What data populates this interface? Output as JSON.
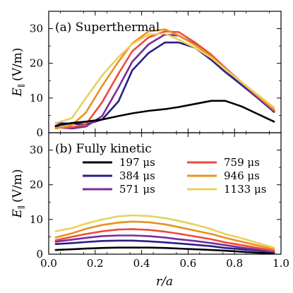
{
  "figure": {
    "xlabel_main": "r/a",
    "ylabel_main": "E",
    "ylabel_sub": "∥",
    "ylabel_unit": "(V/m)"
  },
  "chart_data": [
    {
      "type": "line",
      "panel_label": "(a) Superthermal",
      "xlabel": "r/a",
      "ylabel": "E∥ (V/m)",
      "xlim": [
        0.0,
        1.0
      ],
      "ylim": [
        0,
        35
      ],
      "xticks": [
        "0.0",
        "0.2",
        "0.4",
        "0.6",
        "0.8",
        "1.0"
      ],
      "yticks": [
        "0",
        "10",
        "20",
        "30"
      ],
      "x": [
        0.03,
        0.1,
        0.16,
        0.23,
        0.3,
        0.36,
        0.43,
        0.5,
        0.56,
        0.63,
        0.7,
        0.76,
        0.83,
        0.9,
        0.97
      ],
      "series": [
        {
          "name": "197 μs",
          "color": "#000000",
          "values": [
            2.0,
            2.8,
            3.2,
            3.8,
            4.8,
            5.6,
            6.3,
            6.8,
            7.4,
            8.3,
            9.2,
            9.2,
            7.6,
            5.4,
            3.2
          ]
        },
        {
          "name": "384 μs",
          "color": "#2a1f86",
          "values": [
            2.8,
            2.6,
            2.4,
            3.8,
            9.0,
            18.0,
            23.0,
            26.0,
            26.0,
            24.5,
            21.0,
            17.5,
            13.8,
            10.0,
            6.0
          ]
        },
        {
          "name": "571 μs",
          "color": "#7a2d9a",
          "values": [
            1.6,
            1.2,
            1.8,
            4.8,
            13.0,
            20.5,
            25.5,
            28.3,
            28.0,
            25.5,
            22.0,
            18.3,
            14.3,
            10.2,
            6.2
          ]
        },
        {
          "name": "759 μs",
          "color": "#f04a3a",
          "values": [
            1.4,
            1.6,
            2.4,
            8.8,
            17.0,
            23.5,
            27.5,
            29.2,
            29.0,
            26.0,
            22.5,
            18.7,
            14.6,
            10.5,
            6.5
          ]
        },
        {
          "name": "946 μs",
          "color": "#e8921e",
          "values": [
            1.2,
            2.2,
            5.8,
            13.5,
            20.5,
            25.8,
            29.2,
            29.8,
            28.0,
            25.3,
            22.0,
            18.4,
            14.5,
            10.6,
            6.7
          ]
        },
        {
          "name": "1133 μs",
          "color": "#e6d25e",
          "values": [
            2.8,
            4.2,
            10.0,
            16.5,
            21.8,
            25.6,
            28.3,
            28.6,
            26.8,
            24.5,
            21.6,
            18.3,
            14.6,
            10.9,
            7.3
          ]
        }
      ]
    },
    {
      "type": "line",
      "panel_label": "(b) Fully kinetic",
      "xlabel": "r/a",
      "ylabel": "E∥ (V/m)",
      "xlim": [
        0.0,
        1.0
      ],
      "ylim": [
        0,
        35
      ],
      "xticks": [
        "0.0",
        "0.2",
        "0.4",
        "0.6",
        "0.8",
        "1.0"
      ],
      "yticks": [
        "0",
        "10",
        "20",
        "30"
      ],
      "legend_placement": "top",
      "x": [
        0.03,
        0.1,
        0.16,
        0.23,
        0.3,
        0.36,
        0.43,
        0.5,
        0.56,
        0.63,
        0.7,
        0.76,
        0.83,
        0.9,
        0.97
      ],
      "series": [
        {
          "name": "197 μs",
          "color": "#000000",
          "values": [
            1.2,
            1.4,
            1.6,
            1.8,
            1.9,
            1.9,
            1.9,
            1.8,
            1.6,
            1.4,
            1.2,
            1.0,
            0.7,
            0.4,
            0.2
          ]
        },
        {
          "name": "384 μs",
          "color": "#2a1f86",
          "values": [
            2.9,
            3.2,
            3.5,
            3.8,
            3.9,
            3.9,
            3.7,
            3.4,
            3.1,
            2.7,
            2.3,
            1.8,
            1.4,
            1.0,
            0.5
          ]
        },
        {
          "name": "571 μs",
          "color": "#7a2d9a",
          "values": [
            3.6,
            4.2,
            4.7,
            5.2,
            5.4,
            5.4,
            5.2,
            4.8,
            4.3,
            3.8,
            3.2,
            2.6,
            1.9,
            1.3,
            0.7
          ]
        },
        {
          "name": "759 μs",
          "color": "#f04a3a",
          "values": [
            4.0,
            5.0,
            5.8,
            6.6,
            7.1,
            7.2,
            7.0,
            6.5,
            5.9,
            5.1,
            4.3,
            3.4,
            2.6,
            1.8,
            1.0
          ]
        },
        {
          "name": "946 μs",
          "color": "#e8921e",
          "values": [
            4.8,
            6.0,
            7.3,
            8.4,
            9.1,
            9.4,
            9.2,
            8.6,
            7.8,
            6.8,
            5.8,
            4.7,
            3.6,
            2.5,
            1.4
          ]
        },
        {
          "name": "1133 μs",
          "color": "#e6d25e",
          "values": [
            6.6,
            7.5,
            8.8,
            10.0,
            10.9,
            11.2,
            11.0,
            10.4,
            9.6,
            8.5,
            7.2,
            5.8,
            4.6,
            3.2,
            1.9
          ]
        }
      ]
    }
  ]
}
